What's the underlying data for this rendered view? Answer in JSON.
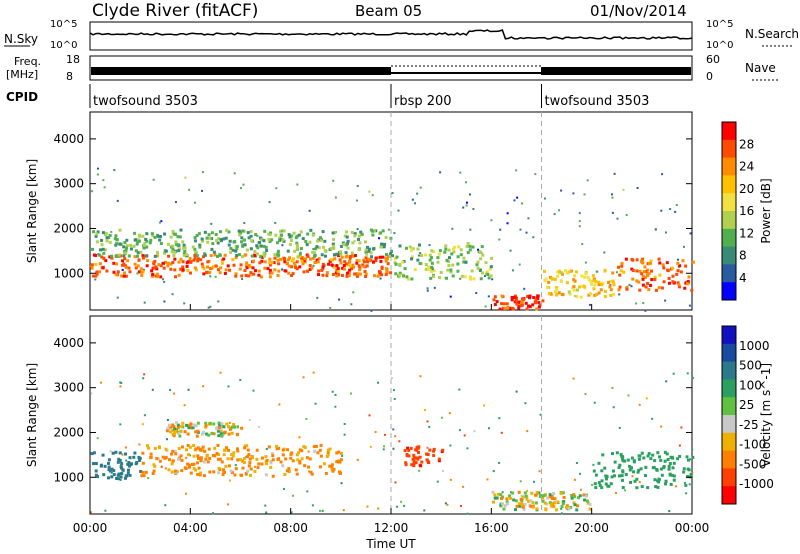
{
  "header": {
    "station": "Clyde River (fitACF)",
    "beam": "Beam 05",
    "date": "01/Nov/2014"
  },
  "noise_panel": {
    "left_label": "N.Sky",
    "right_label": "N.Search",
    "y_ticks": [
      "10^5",
      "10^0"
    ]
  },
  "freq_panel": {
    "left_label_1": "Freq.",
    "left_label_2": "[MHz]",
    "right_label": "Nave",
    "left_ticks": [
      "18",
      "8"
    ],
    "right_ticks": [
      "60",
      "0"
    ]
  },
  "cpid_panel": {
    "label": "CPID",
    "segments": [
      {
        "name": "twofsound 3503",
        "start_h": 0
      },
      {
        "name": "rbsp 200",
        "start_h": 12
      },
      {
        "name": "twofsound 3503",
        "start_h": 18
      }
    ]
  },
  "power_colorbar": {
    "label": "Power [dB]",
    "ticks": [
      "28",
      "24",
      "20",
      "16",
      "12",
      "8",
      "4"
    ],
    "colors": [
      "#ff0000",
      "#ff4a00",
      "#ff8c00",
      "#ffc000",
      "#f0e040",
      "#b0d050",
      "#50b050",
      "#3a8a78",
      "#2a5aa0",
      "#0000ff"
    ]
  },
  "velocity_colorbar": {
    "label": "Velocity [m s^-1]",
    "ticks": [
      "1000",
      "500",
      "100",
      "25",
      "-25",
      "-100",
      "-500",
      "-1000"
    ],
    "colors": [
      "#1010c0",
      "#1a4aa0",
      "#2a7a8a",
      "#2aa060",
      "#60c040",
      "#c8c8c8",
      "#f0b000",
      "#ff8000",
      "#ff4000",
      "#ff0000"
    ]
  },
  "chart_data": {
    "type": "heatmap",
    "xlabel": "Time UT",
    "x_ticks": [
      "00:00",
      "04:00",
      "08:00",
      "12:00",
      "16:00",
      "20:00",
      "00:00"
    ],
    "x_range_hours": [
      0,
      24
    ],
    "mode_change_hours": [
      12,
      18
    ],
    "panels": [
      {
        "name": "power",
        "ylabel": "Slant Range [km]",
        "y_ticks": [
          1000,
          2000,
          3000,
          4000
        ],
        "ylim": [
          180,
          4600
        ],
        "bands": [
          {
            "h0": 0,
            "h1": 12,
            "r_center": 1200,
            "r_half": 250,
            "value": 26
          },
          {
            "h0": 0,
            "h1": 12,
            "r_center": 1700,
            "r_half": 300,
            "value": 12
          },
          {
            "h0": 12,
            "h1": 16,
            "r_center": 1300,
            "r_half": 400,
            "value": 14
          },
          {
            "h0": 16,
            "h1": 18,
            "r_center": 380,
            "r_half": 150,
            "value": 28
          },
          {
            "h0": 18,
            "h1": 21,
            "r_center": 800,
            "r_half": 300,
            "value": 20
          },
          {
            "h0": 21,
            "h1": 24,
            "r_center": 1000,
            "r_half": 350,
            "value": 26
          }
        ]
      },
      {
        "name": "velocity",
        "ylabel": "Slant Range [km]",
        "y_ticks": [
          1000,
          2000,
          3000,
          4000
        ],
        "ylim": [
          180,
          4600
        ],
        "bands": [
          {
            "h0": 0,
            "h1": 2,
            "r_center": 1300,
            "r_half": 300,
            "value": 800
          },
          {
            "h0": 2,
            "h1": 10,
            "r_center": 1400,
            "r_half": 350,
            "value": -150
          },
          {
            "h0": 3,
            "h1": 6,
            "r_center": 2100,
            "r_half": 150,
            "value": 0
          },
          {
            "h0": 12.5,
            "h1": 14,
            "r_center": 1500,
            "r_half": 250,
            "value": -900
          },
          {
            "h0": 16,
            "h1": 20,
            "r_center": 500,
            "r_half": 200,
            "value": 0
          },
          {
            "h0": 20,
            "h1": 24,
            "r_center": 1200,
            "r_half": 400,
            "value": 300
          }
        ]
      }
    ]
  }
}
